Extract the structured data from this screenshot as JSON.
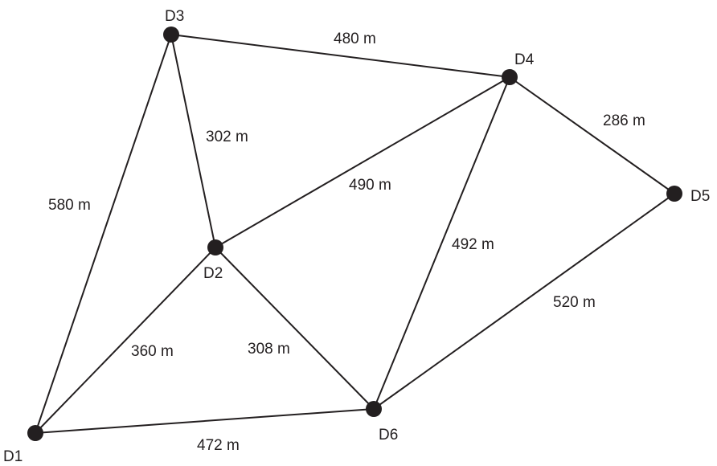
{
  "graph": {
    "nodes": {
      "D1": {
        "label": "D1"
      },
      "D2": {
        "label": "D2"
      },
      "D3": {
        "label": "D3"
      },
      "D4": {
        "label": "D4"
      },
      "D5": {
        "label": "D5"
      },
      "D6": {
        "label": "D6"
      }
    },
    "edges": {
      "d3_d4": {
        "from": "D3",
        "to": "D4",
        "label": "480 m"
      },
      "d4_d5": {
        "from": "D4",
        "to": "D5",
        "label": "286 m"
      },
      "d3_d2": {
        "from": "D3",
        "to": "D2",
        "label": "302 m"
      },
      "d3_d1": {
        "from": "D3",
        "to": "D1",
        "label": "580 m"
      },
      "d2_d4": {
        "from": "D2",
        "to": "D4",
        "label": "490 m"
      },
      "d4_d6": {
        "from": "D4",
        "to": "D6",
        "label": "492 m"
      },
      "d5_d6": {
        "from": "D5",
        "to": "D6",
        "label": "520 m"
      },
      "d2_d1": {
        "from": "D2",
        "to": "D1",
        "label": "360 m"
      },
      "d2_d6": {
        "from": "D2",
        "to": "D6",
        "label": "308 m"
      },
      "d1_d6": {
        "from": "D1",
        "to": "D6",
        "label": "472 m"
      }
    }
  }
}
